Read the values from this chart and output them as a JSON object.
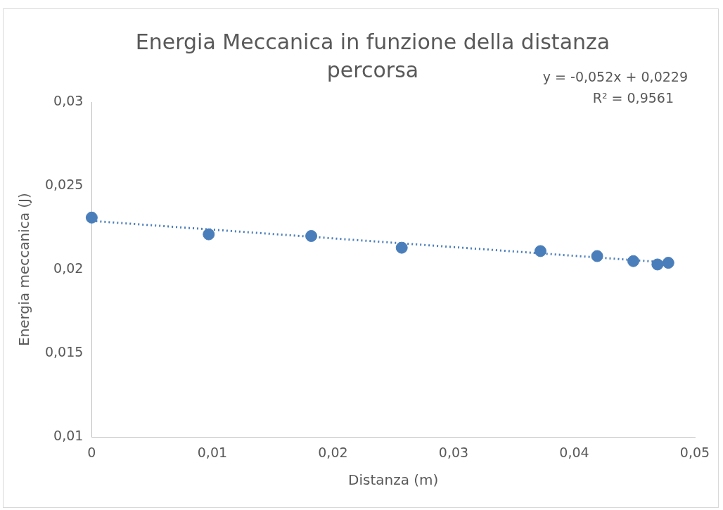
{
  "chart_data": {
    "type": "scatter",
    "title": "Energia Meccanica in funzione della distanza percorsa",
    "xlabel": "Distanza (m)",
    "ylabel": "Energia meccanica (J)",
    "annotations": [
      "y = -0,052x + 0,0229",
      "R² = 0,9561"
    ],
    "series": [
      {
        "color": "#4a7ebb",
        "marker": "circle",
        "x": [
          0,
          0.0097,
          0.0182,
          0.0257,
          0.0372,
          0.0419,
          0.0449,
          0.0469,
          0.0478
        ],
        "values": [
          0.0231,
          0.0221,
          0.022,
          0.0213,
          0.0211,
          0.0208,
          0.0205,
          0.0203,
          0.0204
        ]
      },
      {
        "type": "line",
        "color": "#4a7ebb",
        "marker": "none",
        "line_style": "dotted",
        "x": [
          0,
          0.048
        ],
        "values": [
          0.0229,
          0.0204
        ]
      }
    ],
    "xlim": [
      0,
      0.05
    ],
    "xticks": [
      0,
      {
        "value": 0.01,
        "label": "0,01"
      },
      {
        "value": 0.02,
        "label": "0,02"
      },
      {
        "value": 0.03,
        "label": "0,03"
      },
      {
        "value": 0.04,
        "label": "0,04"
      },
      {
        "value": 0.05,
        "label": "0,05"
      }
    ],
    "ylim": [
      0.01,
      0.03
    ],
    "yticks": [
      {
        "value": 0.01,
        "label": "0,01"
      },
      {
        "value": 0.015,
        "label": "0,015"
      },
      {
        "value": 0.02,
        "label": "0,02"
      },
      {
        "value": 0.025,
        "label": "0,025"
      },
      {
        "value": 0.03,
        "label": "0,03"
      }
    ],
    "grid": false,
    "legend": false
  }
}
